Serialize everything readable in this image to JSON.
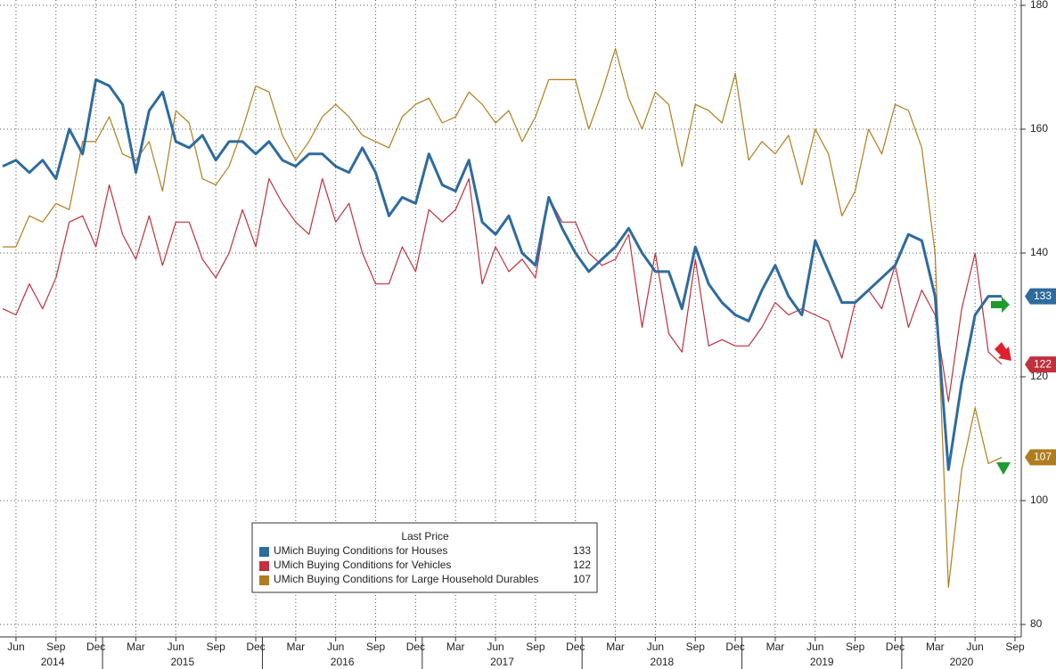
{
  "chart_data": {
    "type": "line",
    "x": [
      "2014-05",
      "2014-06",
      "2014-07",
      "2014-08",
      "2014-09",
      "2014-10",
      "2014-11",
      "2014-12",
      "2015-01",
      "2015-02",
      "2015-03",
      "2015-04",
      "2015-05",
      "2015-06",
      "2015-07",
      "2015-08",
      "2015-09",
      "2015-10",
      "2015-11",
      "2015-12",
      "2016-01",
      "2016-02",
      "2016-03",
      "2016-04",
      "2016-05",
      "2016-06",
      "2016-07",
      "2016-08",
      "2016-09",
      "2016-10",
      "2016-11",
      "2016-12",
      "2017-01",
      "2017-02",
      "2017-03",
      "2017-04",
      "2017-05",
      "2017-06",
      "2017-07",
      "2017-08",
      "2017-09",
      "2017-10",
      "2017-11",
      "2017-12",
      "2018-01",
      "2018-02",
      "2018-03",
      "2018-04",
      "2018-05",
      "2018-06",
      "2018-07",
      "2018-08",
      "2018-09",
      "2018-10",
      "2018-11",
      "2018-12",
      "2019-01",
      "2019-02",
      "2019-03",
      "2019-04",
      "2019-05",
      "2019-06",
      "2019-07",
      "2019-08",
      "2019-09",
      "2019-10",
      "2019-11",
      "2019-12",
      "2020-01",
      "2020-02",
      "2020-03",
      "2020-04",
      "2020-05",
      "2020-06",
      "2020-07",
      "2020-08"
    ],
    "xlim": [
      "2014-05",
      "2020-09"
    ],
    "xticks": [
      {
        "value": "2014-06",
        "label": "Jun"
      },
      {
        "value": "2014-09",
        "label": "Sep"
      },
      {
        "value": "2014-12",
        "label": "Dec"
      },
      {
        "value": "2015-03",
        "label": "Mar"
      },
      {
        "value": "2015-06",
        "label": "Jun"
      },
      {
        "value": "2015-09",
        "label": "Sep"
      },
      {
        "value": "2015-12",
        "label": "Dec"
      },
      {
        "value": "2016-03",
        "label": "Mar"
      },
      {
        "value": "2016-06",
        "label": "Jun"
      },
      {
        "value": "2016-09",
        "label": "Sep"
      },
      {
        "value": "2016-12",
        "label": "Dec"
      },
      {
        "value": "2017-03",
        "label": "Mar"
      },
      {
        "value": "2017-06",
        "label": "Jun"
      },
      {
        "value": "2017-09",
        "label": "Sep"
      },
      {
        "value": "2017-12",
        "label": "Dec"
      },
      {
        "value": "2018-03",
        "label": "Mar"
      },
      {
        "value": "2018-06",
        "label": "Jun"
      },
      {
        "value": "2018-09",
        "label": "Sep"
      },
      {
        "value": "2018-12",
        "label": "Dec"
      },
      {
        "value": "2019-03",
        "label": "Mar"
      },
      {
        "value": "2019-06",
        "label": "Jun"
      },
      {
        "value": "2019-09",
        "label": "Sep"
      },
      {
        "value": "2019-12",
        "label": "Dec"
      },
      {
        "value": "2020-03",
        "label": "Mar"
      },
      {
        "value": "2020-06",
        "label": "Jun"
      },
      {
        "value": "2020-09",
        "label": "Sep"
      }
    ],
    "years": [
      "2014",
      "2015",
      "2016",
      "2017",
      "2018",
      "2019",
      "2020"
    ],
    "ylim": [
      80,
      180
    ],
    "yticks": [
      80,
      100,
      120,
      140,
      160,
      180
    ],
    "grid": true,
    "legend_title": "Last Price",
    "series": [
      {
        "name": "UMich Buying Conditions for Houses",
        "color": "#2e6b9e",
        "values": [
          154,
          155,
          153,
          155,
          152,
          160,
          156,
          168,
          167,
          164,
          153,
          163,
          166,
          158,
          157,
          159,
          155,
          158,
          158,
          156,
          158,
          155,
          154,
          156,
          156,
          154,
          153,
          157,
          153,
          146,
          149,
          148,
          156,
          151,
          150,
          155,
          145,
          143,
          146,
          140,
          138,
          149,
          144,
          140,
          137,
          139,
          141,
          144,
          140,
          137,
          137,
          131,
          141,
          135,
          132,
          130,
          129,
          134,
          138,
          133,
          130,
          142,
          137,
          132,
          132,
          134,
          136,
          138,
          143,
          142,
          133,
          105,
          119,
          130,
          133,
          133
        ]
      },
      {
        "name": "UMich Buying Conditions for Vehicles",
        "color": "#c0303d",
        "values": [
          131,
          130,
          135,
          131,
          136,
          145,
          146,
          141,
          151,
          143,
          139,
          146,
          138,
          145,
          145,
          139,
          136,
          140,
          147,
          141,
          152,
          148,
          145,
          143,
          152,
          145,
          148,
          140,
          135,
          135,
          141,
          137,
          147,
          145,
          147,
          152,
          135,
          141,
          137,
          139,
          136,
          149,
          145,
          145,
          140,
          138,
          139,
          143,
          128,
          140,
          127,
          124,
          139,
          125,
          126,
          125,
          125,
          128,
          132,
          130,
          131,
          130,
          129,
          123,
          132,
          134,
          131,
          138,
          128,
          134,
          130,
          116,
          131,
          140,
          124,
          122
        ]
      },
      {
        "name": "UMich Buying Conditions for Large Household Durables",
        "color": "#b07d1e",
        "values": [
          141,
          141,
          146,
          145,
          148,
          147,
          158,
          158,
          162,
          156,
          155,
          158,
          150,
          163,
          161,
          152,
          151,
          154,
          160,
          167,
          166,
          159,
          155,
          158,
          162,
          164,
          162,
          159,
          158,
          157,
          162,
          164,
          165,
          161,
          162,
          166,
          164,
          161,
          163,
          158,
          162,
          168,
          168,
          168,
          160,
          166,
          173,
          165,
          160,
          166,
          164,
          154,
          164,
          163,
          161,
          169,
          155,
          158,
          156,
          159,
          151,
          160,
          156,
          146,
          150,
          160,
          156,
          164,
          163,
          157,
          140,
          86,
          105,
          115,
          106,
          107
        ]
      }
    ]
  }
}
